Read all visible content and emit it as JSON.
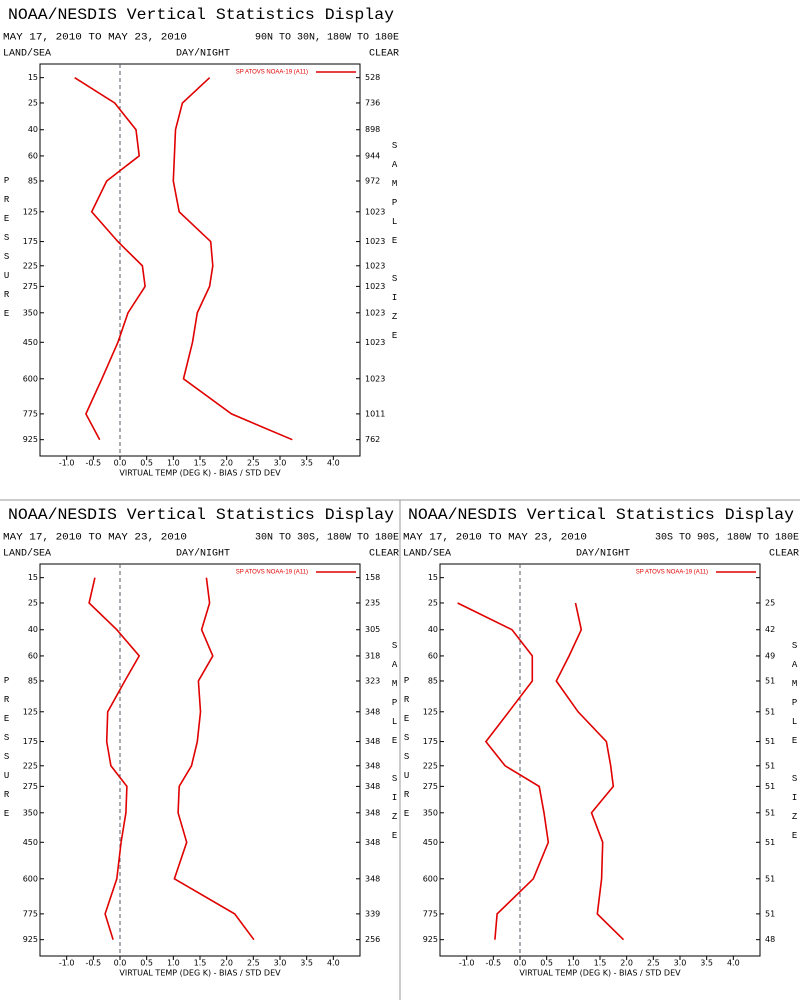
{
  "chart_data": [
    {
      "type": "line",
      "title": "NOAA/NESDIS Vertical Statistics Display",
      "subtitle": "MAY 17, 2010 TO MAY 23, 2010",
      "region": "90N TO 30N, 180W TO 180E",
      "surface": "LAND/SEA",
      "time": "DAY/NIGHT",
      "sky": "CLEAR",
      "y_label": "PRESSURE",
      "y2_label": "SAMPLE SIZE",
      "x_label": "VIRTUAL TEMP (DEG K) - BIAS / STD DEV",
      "yscale": "power",
      "yexponent": 0.286,
      "ylim": [
        1030,
        11
      ],
      "categories": [
        15,
        25,
        40,
        60,
        85,
        125,
        175,
        225,
        275,
        350,
        450,
        600,
        775,
        925
      ],
      "sample_sizes": [
        528,
        736,
        898,
        944,
        972,
        1023,
        1023,
        1023,
        1023,
        1023,
        1023,
        1023,
        1011,
        762
      ],
      "xlim": [
        -1.5,
        4.5
      ],
      "xticks": [
        {
          "value": -1,
          "label": "-1.0"
        },
        -0.5,
        {
          "value": 0,
          "label": "0.0"
        },
        0.5,
        {
          "value": 1,
          "label": "1.0"
        },
        1.5,
        {
          "value": 2,
          "label": "2.0"
        },
        2.5,
        {
          "value": 3,
          "label": "3.0"
        },
        3.5,
        {
          "value": 4,
          "label": "4.0"
        }
      ],
      "series": [
        {
          "name": "SP ATOVS NOAA-19 (A11)",
          "color": "#e00000",
          "values": [
            -0.85,
            -0.1,
            0.3,
            0.36,
            -0.25,
            -0.53,
            -0.04,
            0.42,
            0.47,
            0.15,
            -0.04,
            -0.34,
            -0.64,
            -0.38
          ],
          "std_dev": [
            1.68,
            1.17,
            1.04,
            1.02,
            1.0,
            1.11,
            1.7,
            1.74,
            1.68,
            1.45,
            1.36,
            1.19,
            2.09,
            3.23
          ]
        }
      ]
    },
    {
      "type": "line",
      "title": "NOAA/NESDIS Vertical Statistics Display",
      "subtitle": "MAY 17, 2010 TO MAY 23, 2010",
      "region": "30N TO 30S, 180W TO 180E",
      "surface": "LAND/SEA",
      "time": "DAY/NIGHT",
      "sky": "CLEAR",
      "y_label": "PRESSURE",
      "y2_label": "SAMPLE SIZE",
      "x_label": "VIRTUAL TEMP (DEG K) - BIAS / STD DEV",
      "yscale": "power",
      "yexponent": 0.286,
      "ylim": [
        1030,
        11
      ],
      "categories": [
        15,
        25,
        40,
        60,
        85,
        125,
        175,
        225,
        275,
        350,
        450,
        600,
        775,
        925
      ],
      "sample_sizes": [
        158,
        235,
        305,
        318,
        323,
        348,
        348,
        348,
        348,
        348,
        348,
        348,
        339,
        256
      ],
      "xlim": [
        -1.5,
        4.5
      ],
      "xticks": [
        {
          "value": -1,
          "label": "-1.0"
        },
        -0.5,
        {
          "value": 0,
          "label": "0.0"
        },
        0.5,
        {
          "value": 1,
          "label": "1.0"
        },
        1.5,
        {
          "value": 2,
          "label": "2.0"
        },
        2.5,
        {
          "value": 3,
          "label": "3.0"
        },
        3.5,
        {
          "value": 4,
          "label": "4.0"
        }
      ],
      "series": [
        {
          "name": "SP ATOVS NOAA-19 (A11)",
          "color": "#e00000",
          "values": [
            -0.47,
            -0.58,
            -0.06,
            0.36,
            0.09,
            -0.23,
            -0.25,
            -0.17,
            0.13,
            0.11,
            0.02,
            -0.06,
            -0.28,
            -0.13
          ],
          "std_dev": [
            1.62,
            1.68,
            1.53,
            1.74,
            1.47,
            1.51,
            1.45,
            1.34,
            1.11,
            1.09,
            1.25,
            1.02,
            2.15,
            2.51
          ]
        }
      ]
    },
    {
      "type": "line",
      "title": "NOAA/NESDIS Vertical Statistics Display",
      "subtitle": "MAY 17, 2010 TO MAY 23, 2010",
      "region": "30S TO 90S, 180W TO 180E",
      "surface": "LAND/SEA",
      "time": "DAY/NIGHT",
      "sky": "CLEAR",
      "y_label": "PRESSURE",
      "y2_label": "SAMPLE SIZE",
      "x_label": "VIRTUAL TEMP (DEG K) - BIAS / STD DEV",
      "yscale": "power",
      "yexponent": 0.286,
      "ylim": [
        1030,
        11
      ],
      "categories": [
        15,
        25,
        40,
        60,
        85,
        125,
        175,
        225,
        275,
        350,
        450,
        600,
        775,
        925
      ],
      "sample_sizes": [
        null,
        25,
        42,
        49,
        51,
        51,
        51,
        51,
        51,
        51,
        51,
        51,
        51,
        48
      ],
      "xlim": [
        -1.5,
        4.5
      ],
      "xticks": [
        {
          "value": -1,
          "label": "-1.0"
        },
        -0.5,
        {
          "value": 0,
          "label": "0.0"
        },
        0.5,
        {
          "value": 1,
          "label": "1.0"
        },
        1.5,
        {
          "value": 2,
          "label": "2.0"
        },
        2.5,
        {
          "value": 3,
          "label": "3.0"
        },
        3.5,
        {
          "value": 4,
          "label": "4.0"
        }
      ],
      "series": [
        {
          "name": "SP ATOVS NOAA-19 (A11)",
          "color": "#e00000",
          "values": [
            null,
            -1.17,
            -0.15,
            0.23,
            0.23,
            -0.21,
            -0.64,
            -0.28,
            0.36,
            0.45,
            0.53,
            0.25,
            -0.43,
            -0.47
          ],
          "std_dev": [
            null,
            1.04,
            1.15,
            0.92,
            0.68,
            1.09,
            1.62,
            1.7,
            1.75,
            1.34,
            1.55,
            1.53,
            1.45,
            1.94
          ]
        }
      ]
    }
  ]
}
